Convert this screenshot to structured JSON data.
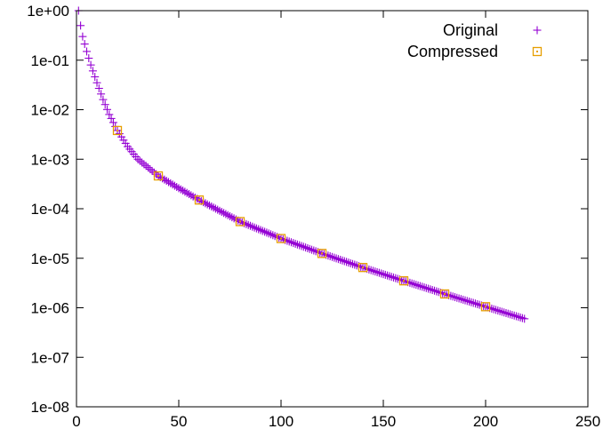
{
  "chart_data": {
    "type": "scatter",
    "x_scale": "linear",
    "y_scale": "log",
    "xlim": [
      0,
      250
    ],
    "ylim": [
      1e-08,
      1
    ],
    "x_ticks": [
      0,
      50,
      100,
      150,
      200,
      250
    ],
    "x_tick_labels": [
      "0",
      "50",
      "100",
      "150",
      "200",
      "250"
    ],
    "y_ticks": [
      1,
      0.1,
      0.01,
      0.001,
      0.0001,
      1e-05,
      1e-06,
      1e-07,
      1e-08
    ],
    "y_tick_labels": [
      "1e+00",
      "1e-01",
      "1e-02",
      "1e-03",
      "1e-04",
      "1e-05",
      "1e-06",
      "1e-07",
      "1e-08"
    ],
    "grid": false,
    "legend_position": "top-right",
    "series": [
      {
        "name": "Original",
        "marker": "plus",
        "color": "#9400D3",
        "curve_points": [
          {
            "x": 1,
            "y": 1.0
          },
          {
            "x": 2,
            "y": 0.5
          },
          {
            "x": 3,
            "y": 0.3
          },
          {
            "x": 5,
            "y": 0.15
          },
          {
            "x": 7,
            "y": 0.08
          },
          {
            "x": 10,
            "y": 0.035
          },
          {
            "x": 13,
            "y": 0.016
          },
          {
            "x": 16,
            "y": 0.008
          },
          {
            "x": 20,
            "y": 0.0038
          },
          {
            "x": 25,
            "y": 0.0018
          },
          {
            "x": 30,
            "y": 0.001
          },
          {
            "x": 40,
            "y": 0.00046
          },
          {
            "x": 50,
            "y": 0.00026
          },
          {
            "x": 60,
            "y": 0.00015
          },
          {
            "x": 80,
            "y": 5.5e-05
          },
          {
            "x": 100,
            "y": 2.5e-05
          },
          {
            "x": 120,
            "y": 1.25e-05
          },
          {
            "x": 140,
            "y": 6.5e-06
          },
          {
            "x": 160,
            "y": 3.5e-06
          },
          {
            "x": 180,
            "y": 1.9e-06
          },
          {
            "x": 200,
            "y": 1.05e-06
          },
          {
            "x": 219,
            "y": 6e-07
          }
        ],
        "x_range": [
          1,
          219
        ],
        "sampling": "every integer x"
      },
      {
        "name": "Compressed",
        "marker": "square-dot",
        "color": "#E69F00",
        "x": [
          20,
          40,
          60,
          80,
          100,
          120,
          140,
          160,
          180,
          200
        ],
        "y": [
          0.0038,
          0.00046,
          0.00015,
          5.5e-05,
          2.5e-05,
          1.25e-05,
          6.5e-06,
          3.5e-06,
          1.9e-06,
          1.05e-06
        ]
      }
    ]
  }
}
